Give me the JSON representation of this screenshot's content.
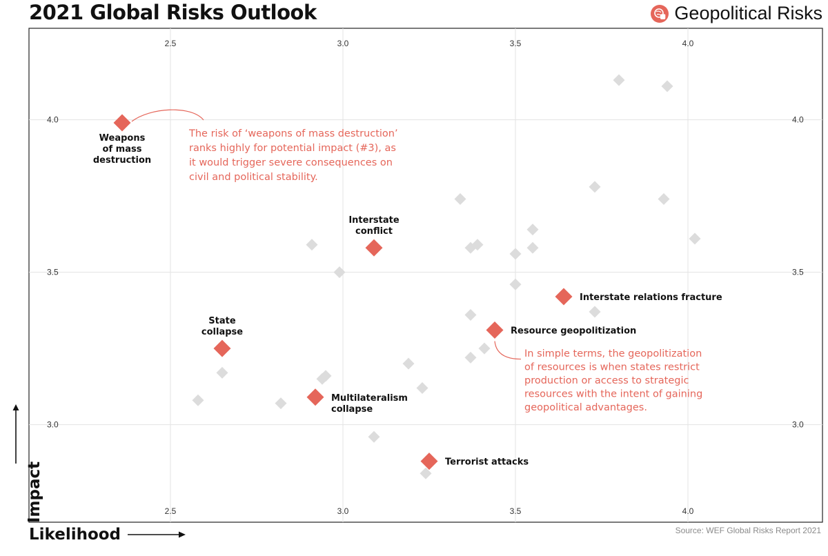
{
  "page": {
    "title": "2021 Global Risks Outlook",
    "category": "Geopolitical Risks",
    "source": "Source: WEF Global Risks Report 2021",
    "category_icon": "geopolitical-hand-icon",
    "accent_color": "#e5665a",
    "muted_point_color": "#dcdcdc"
  },
  "chart_data": {
    "type": "scatter",
    "title": "2021 Global Risks Outlook",
    "xlabel": "Likelihood",
    "ylabel": "Impact",
    "xlim": [
      2.09,
      4.39
    ],
    "ylim": [
      2.68,
      4.3
    ],
    "xticks": [
      2.5,
      3.0,
      3.5,
      4.0
    ],
    "yticks": [
      3.0,
      3.5,
      4.0
    ],
    "xtick_labels": [
      "2.5",
      "3.0",
      "3.5",
      "4.0"
    ],
    "ytick_labels": [
      "3.0",
      "3.5",
      "4.0"
    ],
    "grid": true,
    "highlighted_points": [
      {
        "label": "Weapons of mass destruction",
        "label_lines": [
          "Weapons",
          "of mass",
          "destruction"
        ],
        "x": 2.36,
        "y": 3.99,
        "label_position": "below"
      },
      {
        "label": "Interstate conflict",
        "label_lines": [
          "Interstate",
          "conflict"
        ],
        "x": 3.09,
        "y": 3.58,
        "label_position": "above"
      },
      {
        "label": "State collapse",
        "label_lines": [
          "State",
          "collapse"
        ],
        "x": 2.65,
        "y": 3.25,
        "label_position": "above"
      },
      {
        "label": "Multilateralism collapse",
        "label_lines": [
          "Multilateralism",
          "collapse"
        ],
        "x": 2.92,
        "y": 3.09,
        "label_position": "right"
      },
      {
        "label": "Terrorist attacks",
        "label_lines": [
          "Terrorist attacks"
        ],
        "x": 3.25,
        "y": 2.88,
        "label_position": "right"
      },
      {
        "label": "Resource geopolitization",
        "label_lines": [
          "Resource geopolitization"
        ],
        "x": 3.44,
        "y": 3.31,
        "label_position": "right"
      },
      {
        "label": "Interstate relations fracture",
        "label_lines": [
          "Interstate relations fracture"
        ],
        "x": 3.64,
        "y": 3.42,
        "label_position": "right"
      }
    ],
    "other_points": [
      {
        "x": 3.8,
        "y": 4.13
      },
      {
        "x": 3.94,
        "y": 4.11
      },
      {
        "x": 3.73,
        "y": 3.78
      },
      {
        "x": 3.34,
        "y": 3.74
      },
      {
        "x": 3.93,
        "y": 3.74
      },
      {
        "x": 3.55,
        "y": 3.64
      },
      {
        "x": 4.02,
        "y": 3.61
      },
      {
        "x": 2.91,
        "y": 3.59
      },
      {
        "x": 3.39,
        "y": 3.59
      },
      {
        "x": 3.37,
        "y": 3.58
      },
      {
        "x": 3.55,
        "y": 3.58
      },
      {
        "x": 3.5,
        "y": 3.56
      },
      {
        "x": 2.99,
        "y": 3.5
      },
      {
        "x": 3.5,
        "y": 3.46
      },
      {
        "x": 3.37,
        "y": 3.36
      },
      {
        "x": 3.73,
        "y": 3.37
      },
      {
        "x": 3.41,
        "y": 3.25
      },
      {
        "x": 3.37,
        "y": 3.22
      },
      {
        "x": 3.19,
        "y": 3.2
      },
      {
        "x": 2.65,
        "y": 3.17
      },
      {
        "x": 2.95,
        "y": 3.16
      },
      {
        "x": 2.94,
        "y": 3.15
      },
      {
        "x": 3.23,
        "y": 3.12
      },
      {
        "x": 2.58,
        "y": 3.08
      },
      {
        "x": 2.82,
        "y": 3.07
      },
      {
        "x": 3.09,
        "y": 2.96
      },
      {
        "x": 3.24,
        "y": 2.84
      }
    ],
    "annotations": [
      {
        "target": "Weapons of mass destruction",
        "lines": [
          "The risk of ‘weapons of mass destruction’",
          "ranks highly for potential impact (#3), as",
          "it would trigger severe consequences on",
          "civil and political stability."
        ]
      },
      {
        "target": "Resource geopolitization",
        "lines": [
          "In simple terms, the geopolitization",
          "of resources is when states restrict",
          "production or access to strategic",
          "resources with the intent of gaining",
          "geopolitical advantages."
        ]
      }
    ]
  }
}
